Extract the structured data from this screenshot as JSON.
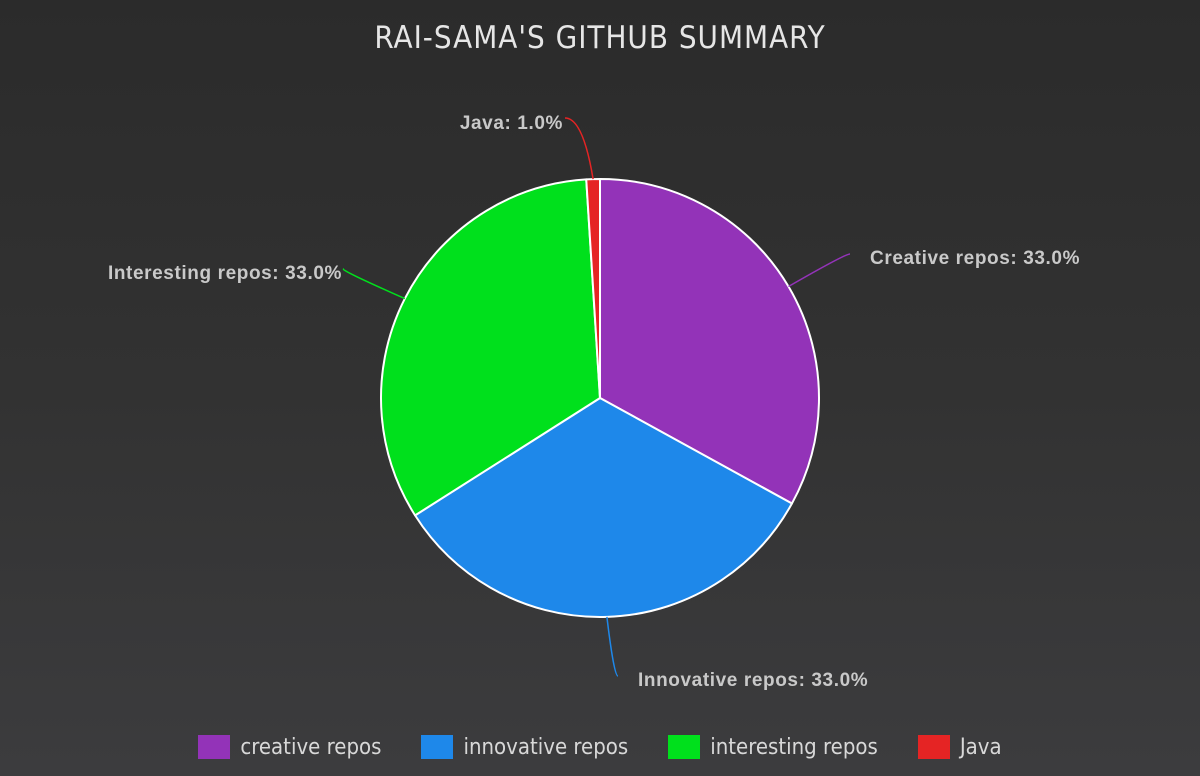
{
  "chart_data": {
    "type": "pie",
    "title": "RAI-SAMA'S GITHUB SUMMARY",
    "categories": [
      "Creative repos",
      "Innovative repos",
      "Interesting repos",
      "Java"
    ],
    "values": [
      33.0,
      33.0,
      33.0,
      1.0
    ],
    "slice_labels": [
      "Creative repos: 33.0%",
      "Innovative repos: 33.0%",
      "Interesting repos: 33.0%",
      "Java: 1.0%"
    ],
    "colors": [
      "#9333b8",
      "#1e88ea",
      "#00e01c",
      "#e52424"
    ],
    "legend": {
      "position": "bottom",
      "labels": [
        "creative repos",
        "innovative repos",
        "interesting repos",
        "Java"
      ]
    }
  }
}
